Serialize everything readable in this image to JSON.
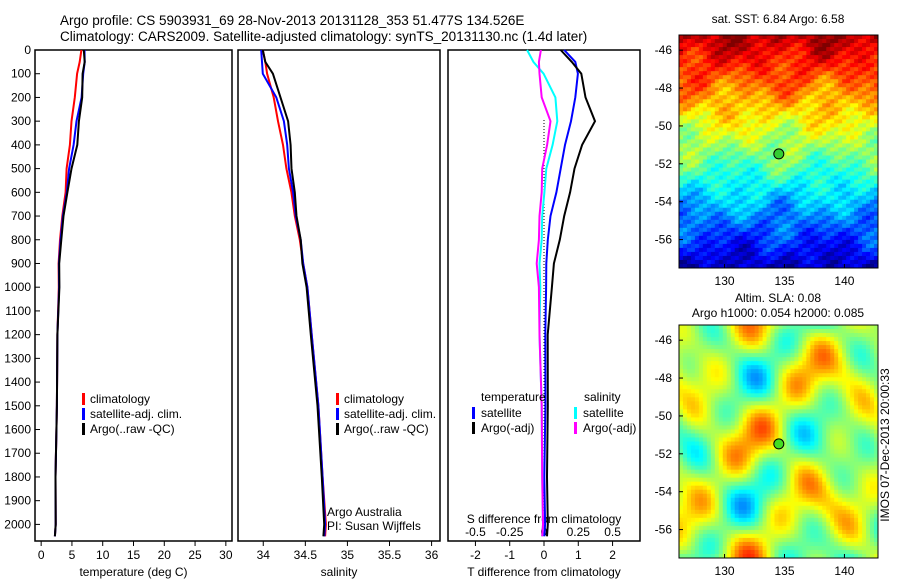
{
  "header": {
    "line1": "Argo profile: CS 5903931_69 28-Nov-2013 20131128_353 51.477S 134.526E",
    "line2": "Climatology: CARS2009. Satellite-adjusted climatology: synTS_20131130.nc (1.4d later)"
  },
  "chart_data": [
    {
      "type": "line",
      "id": "temperature",
      "xlabel": "temperature (deg C)",
      "ylabel": "",
      "xlim": [
        -1,
        31
      ],
      "ylim": [
        2070,
        0
      ],
      "xticks": [
        0,
        5,
        10,
        15,
        20,
        25,
        30
      ],
      "yticks": [
        0,
        100,
        200,
        300,
        400,
        500,
        600,
        700,
        800,
        900,
        1000,
        1100,
        1200,
        1300,
        1400,
        1500,
        1600,
        1700,
        1800,
        1900,
        2000
      ],
      "depth": [
        0,
        50,
        100,
        200,
        300,
        400,
        500,
        600,
        700,
        800,
        900,
        1000,
        1200,
        1500,
        1800,
        2000,
        2050
      ],
      "series": [
        {
          "name": "climatology",
          "color": "#ff0000",
          "values": [
            6.6,
            6.2,
            5.9,
            5.4,
            5.0,
            4.6,
            4.2,
            3.9,
            3.5,
            3.0,
            2.9,
            2.8,
            2.7,
            2.5,
            2.4,
            2.3,
            2.3
          ]
        },
        {
          "name": "satellite-adj. clim.",
          "color": "#0000ff",
          "values": [
            7.1,
            7.0,
            6.9,
            6.5,
            5.8,
            5.2,
            4.6,
            4.1,
            3.6,
            3.1,
            2.95,
            2.85,
            2.7,
            2.5,
            2.4,
            2.3,
            2.3
          ]
        },
        {
          "name": "Argo(..raw -QC)",
          "color": "#000000",
          "values": [
            7.0,
            7.0,
            6.8,
            6.6,
            6.2,
            5.8,
            5.0,
            4.2,
            3.7,
            3.2,
            3.0,
            2.9,
            2.7,
            2.5,
            2.4,
            2.3,
            2.3
          ]
        }
      ],
      "legend": [
        "climatology",
        "satellite-adj. clim.",
        "Argo(..raw -QC)"
      ]
    },
    {
      "type": "line",
      "id": "salinity",
      "xlabel": "salinity",
      "xlim": [
        33.7,
        36.1
      ],
      "ylim": [
        2070,
        0
      ],
      "xticks": [
        34,
        34.5,
        35,
        35.5,
        36
      ],
      "depth": [
        0,
        50,
        100,
        200,
        300,
        400,
        500,
        600,
        700,
        800,
        900,
        1000,
        1200,
        1500,
        1800,
        2000,
        2050
      ],
      "series": [
        {
          "name": "climatology",
          "color": "#ff0000",
          "values": [
            34.0,
            34.02,
            34.05,
            34.12,
            34.18,
            34.23,
            34.28,
            34.33,
            34.38,
            34.43,
            34.48,
            34.52,
            34.58,
            34.65,
            34.71,
            34.74,
            34.74
          ]
        },
        {
          "name": "satellite-adj. clim.",
          "color": "#0000ff",
          "values": [
            33.98,
            33.98,
            34.0,
            34.15,
            34.25,
            34.28,
            34.31,
            34.35,
            34.39,
            34.44,
            34.48,
            34.52,
            34.58,
            34.65,
            34.71,
            34.73,
            34.73
          ]
        },
        {
          "name": "Argo(..raw -QC)",
          "color": "#000000",
          "values": [
            34.0,
            34.02,
            34.12,
            34.2,
            34.3,
            34.32,
            34.34,
            34.37,
            34.4,
            34.44,
            34.47,
            34.51,
            34.57,
            34.64,
            34.7,
            34.72,
            34.72
          ]
        }
      ],
      "legend": [
        "climatology",
        "satellite-adj. clim.",
        "Argo(..raw -QC)"
      ],
      "annotation": [
        "Argo Australia",
        "PI: Susan Wijffels"
      ]
    },
    {
      "type": "line",
      "id": "difference",
      "xlabel": "T difference from climatology",
      "x2label": "S difference from climatology",
      "xlim": [
        -2.8,
        2.8
      ],
      "x2lim": [
        -0.7,
        0.7
      ],
      "ylim": [
        2070,
        0
      ],
      "xticks": [
        -2,
        -1,
        0,
        1,
        2
      ],
      "x2ticks": [
        -0.5,
        -0.25,
        0,
        0.25,
        0.5
      ],
      "x2ticklabels": [
        "-0.5",
        "-0.25",
        "0",
        "0.25",
        "0.5"
      ],
      "depth": [
        0,
        50,
        100,
        200,
        300,
        400,
        500,
        600,
        700,
        800,
        900,
        1000,
        1200,
        1500,
        1800,
        2000,
        2050
      ],
      "series": [
        {
          "name": "temperature satellite",
          "axis": "T",
          "color": "#0000ff",
          "values": [
            0.6,
            0.9,
            1.0,
            0.9,
            0.8,
            0.6,
            0.5,
            0.35,
            0.2,
            0.1,
            0.08,
            0.05,
            0.05,
            0.03,
            0.02,
            0.02,
            0.02
          ]
        },
        {
          "name": "temperature Argo(-adj)",
          "axis": "T",
          "color": "#000000",
          "values": [
            0.5,
            0.8,
            1.1,
            1.2,
            1.5,
            1.1,
            0.9,
            0.75,
            0.6,
            0.45,
            0.3,
            0.22,
            0.12,
            0.1,
            0.1,
            0.1,
            0.1
          ]
        },
        {
          "name": "salinity satellite",
          "axis": "S",
          "color": "#00ffff",
          "values": [
            -0.12,
            -0.08,
            0.0,
            0.08,
            0.1,
            0.06,
            0.02,
            0.0,
            -0.01,
            -0.02,
            -0.03,
            -0.03,
            -0.03,
            -0.02,
            -0.01,
            -0.01,
            -0.01
          ]
        },
        {
          "name": "salinity Argo(-adj)",
          "axis": "S",
          "color": "#ff00ff",
          "values": [
            -0.02,
            -0.04,
            -0.03,
            -0.02,
            0.05,
            0.02,
            -0.01,
            -0.02,
            -0.03,
            -0.04,
            -0.05,
            -0.04,
            -0.03,
            -0.02,
            -0.01,
            -0.01,
            -0.01
          ]
        }
      ],
      "legend": {
        "temp_title": "temperature",
        "sal_title": "salinity",
        "items": [
          "satellite",
          "Argo(-adj)",
          "satellite",
          "Argo(-adj)"
        ]
      }
    }
  ],
  "maps": {
    "sst": {
      "title": "sat. SST: 6.84 Argo: 6.58",
      "xticks": [
        "130",
        "135",
        "140"
      ],
      "yticks": [
        "-46",
        "-48",
        "-50",
        "-52",
        "-54",
        "-56"
      ]
    },
    "sla": {
      "title1": "Altim. SLA: 0.08",
      "title2": "Argo h1000: 0.054 h2000: 0.085",
      "xticks": [
        "130",
        "135",
        "140"
      ],
      "yticks": [
        "-46",
        "-48",
        "-50",
        "-52",
        "-54",
        "-56"
      ],
      "stamp": "IMOS 07-Dec-2013 20:00:33"
    }
  }
}
